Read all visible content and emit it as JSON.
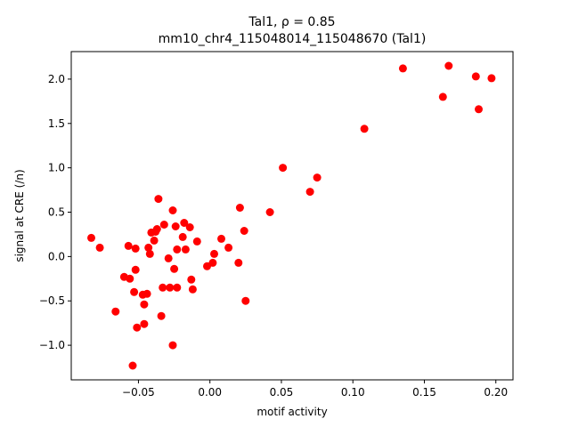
{
  "chart_data": {
    "type": "scatter",
    "title_line1": "Tal1, ρ = 0.85",
    "title_line2": "mm10_chr4_115048014_115048670 (Tal1)",
    "xlabel": "motif activity",
    "ylabel": "signal at CRE (/n)",
    "xlim": [
      -0.097,
      0.212
    ],
    "ylim": [
      -1.39,
      2.31
    ],
    "xticks": [
      -0.05,
      0.0,
      0.05,
      0.1,
      0.15,
      0.2
    ],
    "xtick_labels": [
      "−0.05",
      "0.00",
      "0.05",
      "0.10",
      "0.15",
      "0.20"
    ],
    "yticks": [
      -1.0,
      -0.5,
      0.0,
      0.5,
      1.0,
      1.5,
      2.0
    ],
    "ytick_labels": [
      "−1.0",
      "−0.5",
      "0.0",
      "0.5",
      "1.0",
      "1.5",
      "2.0"
    ],
    "marker_color": "#ff0000",
    "grid": false,
    "points": [
      [
        -0.083,
        0.21
      ],
      [
        -0.077,
        0.1
      ],
      [
        -0.066,
        -0.62
      ],
      [
        -0.06,
        -0.23
      ],
      [
        -0.057,
        0.12
      ],
      [
        -0.056,
        -0.25
      ],
      [
        -0.054,
        -1.23
      ],
      [
        -0.053,
        -0.4
      ],
      [
        -0.052,
        0.09
      ],
      [
        -0.052,
        -0.15
      ],
      [
        -0.051,
        -0.8
      ],
      [
        -0.047,
        -0.43
      ],
      [
        -0.046,
        -0.54
      ],
      [
        -0.046,
        -0.76
      ],
      [
        -0.044,
        -0.42
      ],
      [
        -0.043,
        0.1
      ],
      [
        -0.042,
        0.03
      ],
      [
        -0.041,
        0.27
      ],
      [
        -0.039,
        0.18
      ],
      [
        -0.038,
        0.28
      ],
      [
        -0.037,
        0.31
      ],
      [
        -0.036,
        0.65
      ],
      [
        -0.034,
        -0.67
      ],
      [
        -0.033,
        -0.35
      ],
      [
        -0.032,
        0.36
      ],
      [
        -0.029,
        -0.02
      ],
      [
        -0.028,
        -0.35
      ],
      [
        -0.026,
        0.52
      ],
      [
        -0.026,
        -1.0
      ],
      [
        -0.025,
        -0.14
      ],
      [
        -0.024,
        0.34
      ],
      [
        -0.023,
        0.08
      ],
      [
        -0.023,
        -0.35
      ],
      [
        -0.019,
        0.22
      ],
      [
        -0.018,
        0.38
      ],
      [
        -0.017,
        0.08
      ],
      [
        -0.014,
        0.33
      ],
      [
        -0.013,
        -0.26
      ],
      [
        -0.012,
        -0.37
      ],
      [
        -0.009,
        0.17
      ],
      [
        -0.002,
        -0.11
      ],
      [
        0.002,
        -0.07
      ],
      [
        0.003,
        0.03
      ],
      [
        0.008,
        0.2
      ],
      [
        0.013,
        0.1
      ],
      [
        0.02,
        -0.07
      ],
      [
        0.021,
        0.55
      ],
      [
        0.024,
        0.29
      ],
      [
        0.025,
        -0.5
      ],
      [
        0.042,
        0.5
      ],
      [
        0.051,
        1.0
      ],
      [
        0.07,
        0.73
      ],
      [
        0.075,
        0.89
      ],
      [
        0.108,
        1.44
      ],
      [
        0.135,
        2.12
      ],
      [
        0.163,
        1.8
      ],
      [
        0.167,
        2.15
      ],
      [
        0.186,
        2.03
      ],
      [
        0.188,
        1.66
      ],
      [
        0.197,
        2.01
      ]
    ]
  }
}
